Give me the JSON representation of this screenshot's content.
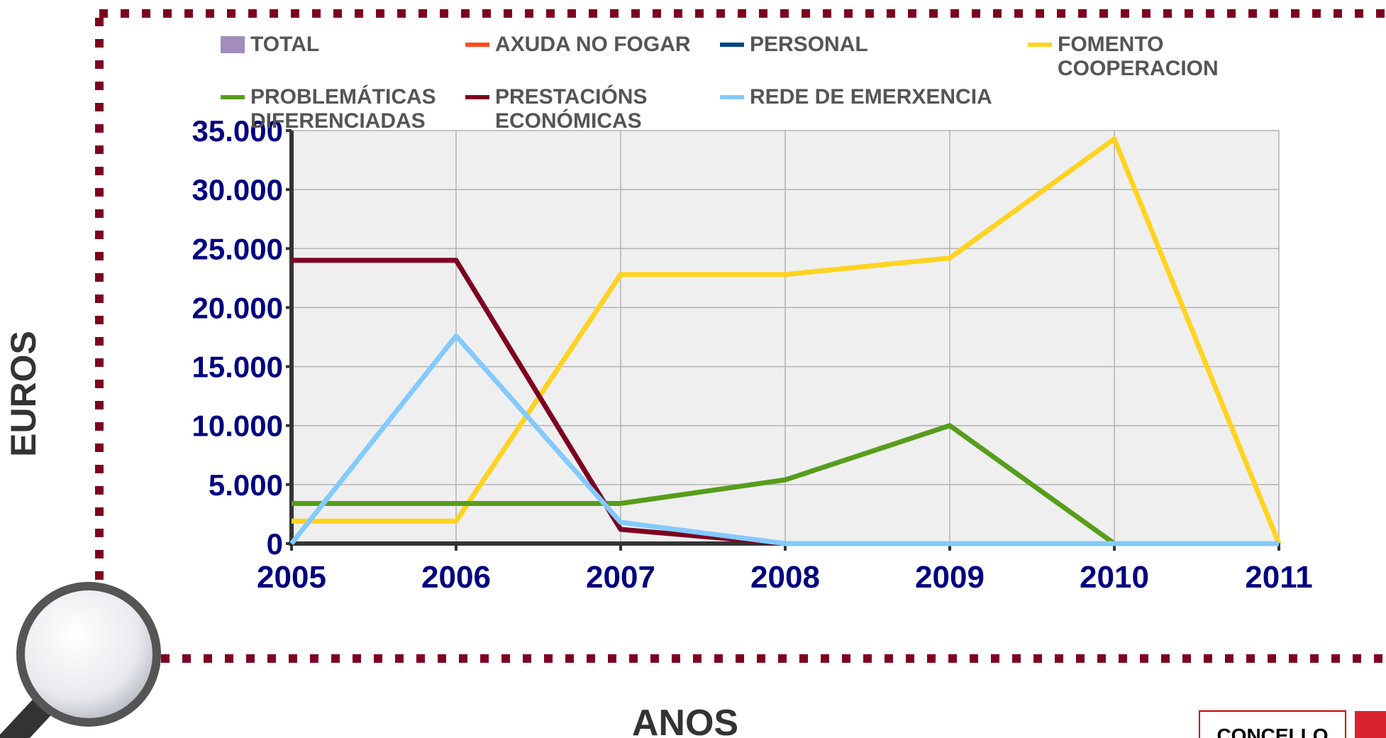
{
  "chart_data": {
    "type": "line",
    "x_label": "ANOS",
    "y_label": "EUROS",
    "x": [
      2005,
      2006,
      2007,
      2008,
      2009,
      2010,
      2011
    ],
    "xlim": [
      2005,
      2011
    ],
    "xticks": [
      2005,
      2006,
      2007,
      2008,
      2009,
      2010,
      2011
    ],
    "ylim": [
      0,
      35000
    ],
    "yticks": [
      {
        "value": 0,
        "label": "0"
      },
      {
        "value": 5000,
        "label": "5.000"
      },
      {
        "value": 10000,
        "label": "10.000"
      },
      {
        "value": 15000,
        "label": "15.000"
      },
      {
        "value": 20000,
        "label": "20.000"
      },
      {
        "value": 25000,
        "label": "25.000"
      },
      {
        "value": 30000,
        "label": "30.000"
      },
      {
        "value": 35000,
        "label": "35.000"
      }
    ],
    "grid": true,
    "series": [
      {
        "name": "TOTAL",
        "color": "#a28dbb",
        "style": "area",
        "values": [
          null,
          null,
          null,
          null,
          null,
          null,
          null
        ]
      },
      {
        "name": "AXUDA NO FOGAR",
        "color": "#ff4a1c",
        "values": [
          null,
          null,
          null,
          null,
          null,
          null,
          null
        ]
      },
      {
        "name": "PERSONAL",
        "color": "#004586",
        "values": [
          null,
          null,
          null,
          null,
          null,
          null,
          null
        ]
      },
      {
        "name": "FOMENTO COOPERACION",
        "color": "#ffd320",
        "values": [
          1900,
          1900,
          22800,
          22800,
          24200,
          34300,
          0
        ]
      },
      {
        "name": "PROBLEMÁTICAS DIFERENCIADAS",
        "color": "#579d1c",
        "values": [
          3400,
          3400,
          3400,
          5400,
          10000,
          0,
          0
        ]
      },
      {
        "name": "PRESTACIÓNS ECONÓMICAS",
        "color": "#7e0021",
        "values": [
          24000,
          24000,
          1200,
          0,
          0,
          0,
          0
        ]
      },
      {
        "name": "REDE DE EMERXENCIA",
        "color": "#83caff",
        "values": [
          0,
          17600,
          1800,
          0,
          0,
          0,
          0
        ]
      }
    ]
  },
  "logo": {
    "text": "CONCELLO"
  }
}
